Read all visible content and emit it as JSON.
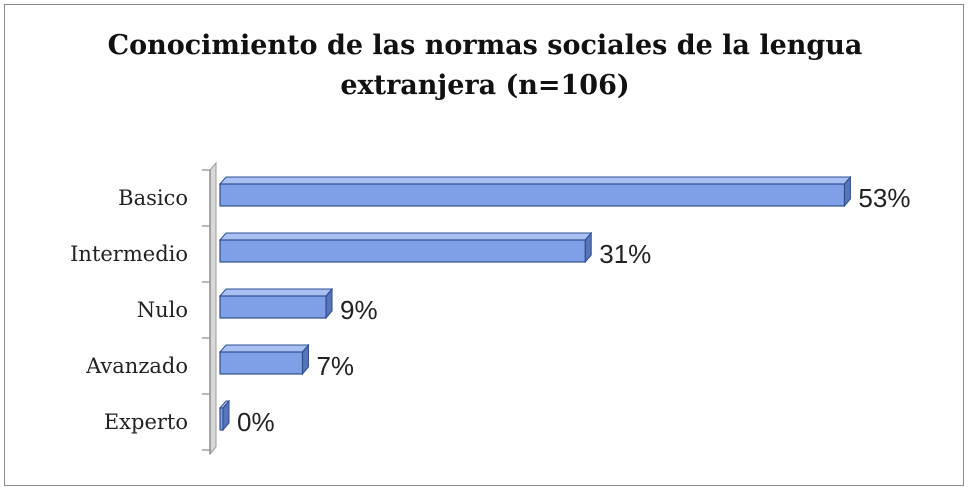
{
  "chart_data": {
    "type": "bar",
    "orientation": "horizontal",
    "title_lines": [
      "Conocimiento de las normas sociales  de la lengua",
      "extranjera (n=106)"
    ],
    "categories": [
      "Basico",
      "Intermedio",
      "Nulo",
      "Avanzado",
      "Experto"
    ],
    "values": [
      53,
      31,
      9,
      7,
      0
    ],
    "value_labels": [
      "53%",
      "31%",
      "9%",
      "7%",
      "0%"
    ],
    "unit": "%",
    "xlim": [
      0,
      55
    ],
    "grid": false,
    "legend": "none",
    "colors": {
      "bar": "#7f9fe6",
      "bar_edge": "#2f4f8f",
      "bar_top": "#a9c0f3",
      "bar_side": "#5873b8",
      "wall": "#d8d8d8"
    }
  }
}
